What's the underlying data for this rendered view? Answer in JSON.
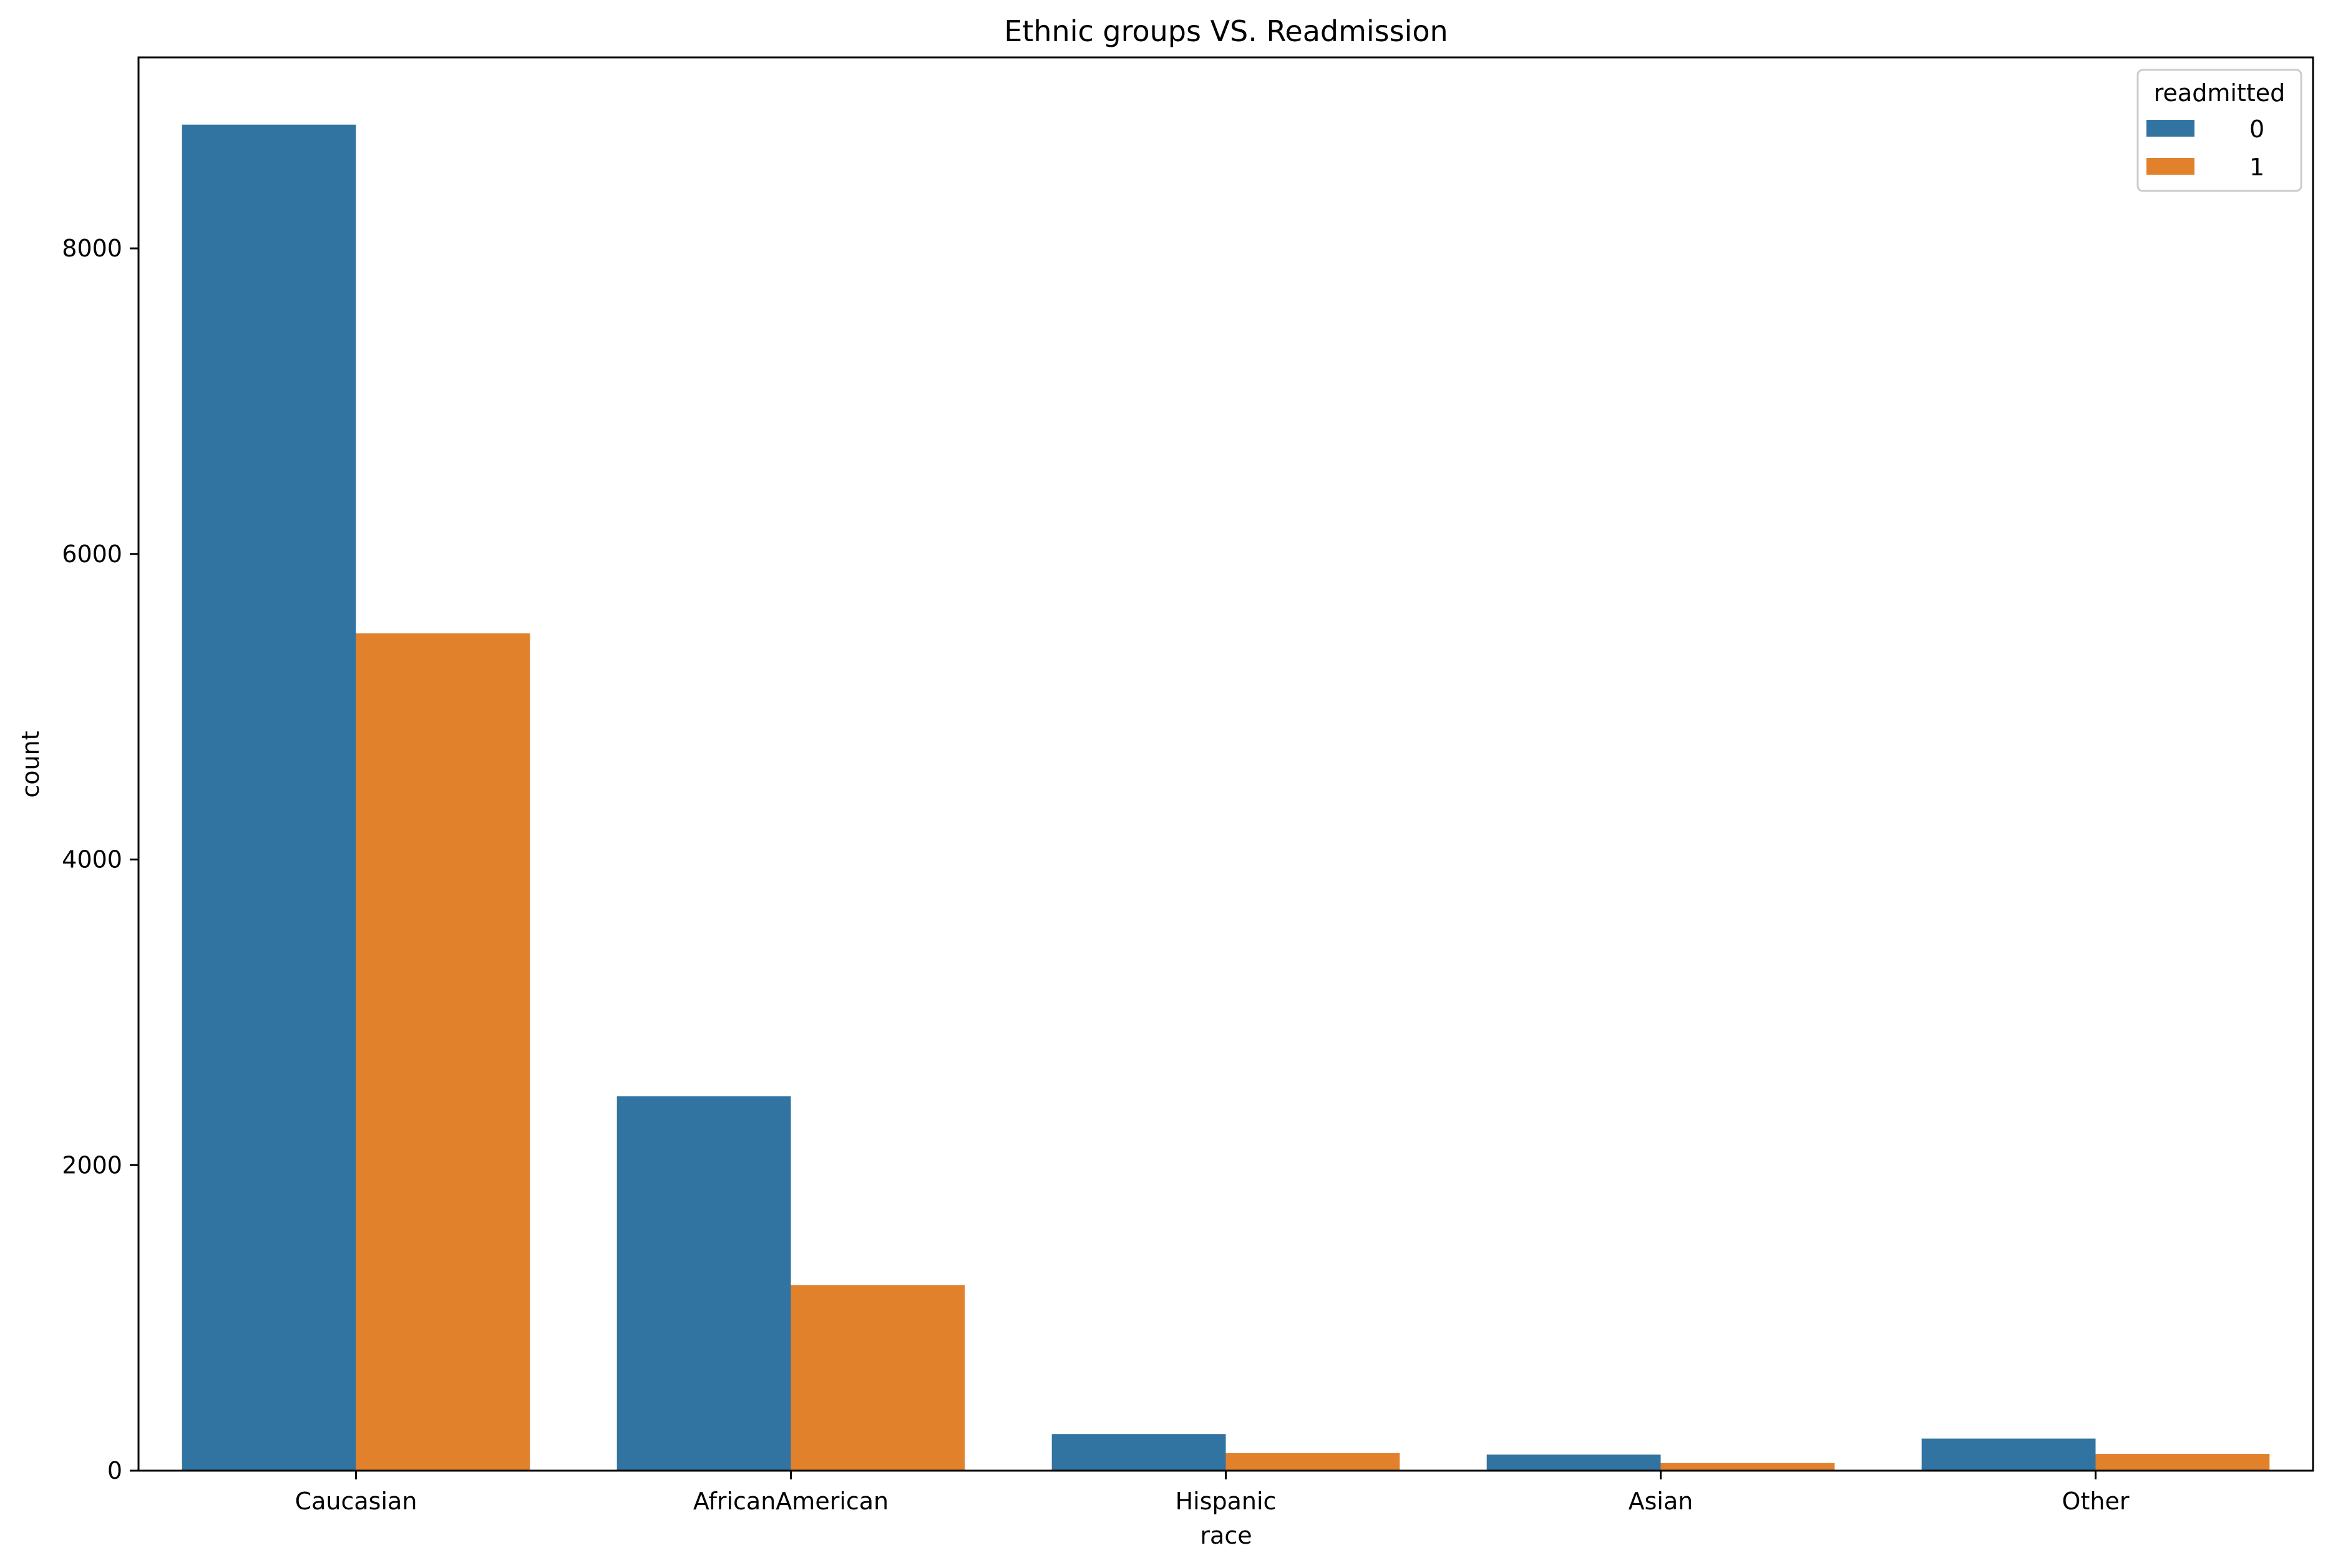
{
  "chart_data": {
    "type": "bar",
    "title": "Ethnic groups  VS. Readmission",
    "xlabel": "race",
    "ylabel": "count",
    "categories": [
      "Caucasian",
      "AfricanAmerican",
      "Hispanic",
      "Asian",
      "Other"
    ],
    "series": [
      {
        "name": "0",
        "color": "#3274a1",
        "values": [
          8810,
          2450,
          240,
          105,
          210
        ]
      },
      {
        "name": "1",
        "color": "#e1812c",
        "values": [
          5480,
          1215,
          115,
          50,
          110
        ]
      }
    ],
    "ylim": [
      0,
      9250
    ],
    "yticks": [
      0,
      2000,
      4000,
      6000,
      8000
    ],
    "legend": {
      "title": "readmitted",
      "position": "top-right"
    },
    "grid": false
  }
}
